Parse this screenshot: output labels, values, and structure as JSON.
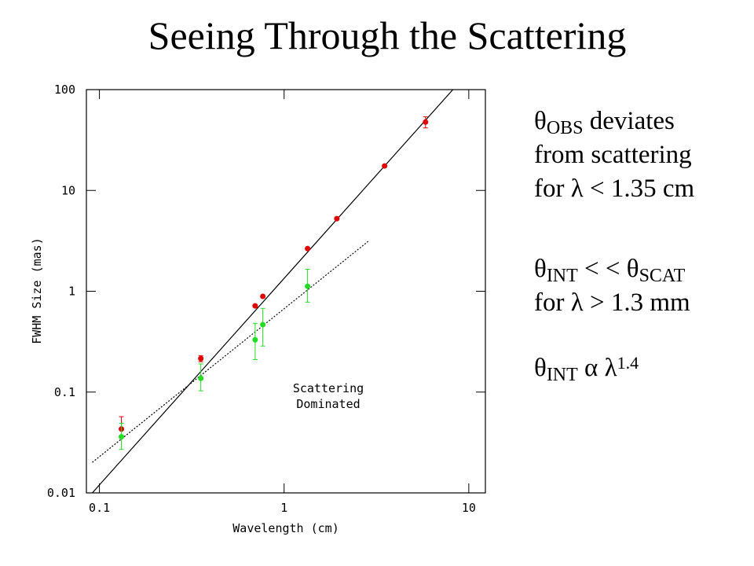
{
  "title": "Seeing Through the Scattering",
  "chart_data": {
    "type": "scatter",
    "x_label": "Wavelength (cm)",
    "y_label": "FWHM Size (mas)",
    "xscale": "log",
    "yscale": "log",
    "xlim": [
      0.085,
      12.3
    ],
    "ylim": [
      0.01,
      100
    ],
    "xticks": [
      0.1,
      1,
      10
    ],
    "yticks": [
      0.01,
      0.1,
      1,
      10,
      100
    ],
    "series": [
      {
        "color": "#e00000",
        "x": [
          0.1315,
          0.354,
          0.697,
          0.767,
          1.34,
          1.93,
          3.5,
          5.83
        ],
        "values": [
          0.043,
          0.215,
          0.716,
          0.89,
          2.65,
          5.25,
          17.5,
          47.7
        ],
        "err_minus": [
          0.006,
          0.015,
          null,
          null,
          null,
          null,
          null,
          6
        ],
        "err_plus": [
          0.014,
          0.015,
          null,
          null,
          null,
          null,
          null,
          6
        ]
      },
      {
        "color": "#22dd22",
        "x": [
          0.1315,
          0.354,
          0.697,
          0.767,
          1.34
        ],
        "values": [
          0.036,
          0.137,
          0.33,
          0.466,
          1.12
        ],
        "err_minus": [
          0.009,
          0.034,
          0.12,
          0.18,
          0.34
        ],
        "err_plus": [
          0.013,
          0.053,
          0.15,
          0.21,
          0.53
        ]
      }
    ],
    "lines": [
      {
        "color": "#000000",
        "dashed": false,
        "x": [
          0.0915,
          8.2
        ],
        "values": [
          0.01,
          100
        ]
      },
      {
        "color": "#000000",
        "dashed": true,
        "x": [
          0.0915,
          2.85
        ],
        "values": [
          0.0201,
          3.12
        ]
      }
    ],
    "annotation": [
      "Scattering",
      "Dominated"
    ]
  },
  "notes": [
    {
      "lines": [
        [
          {
            "text": "θ"
          },
          {
            "sub": "OBS"
          },
          {
            "text": " deviates"
          }
        ],
        [
          {
            "text": "from scattering"
          }
        ],
        [
          {
            "text": "for λ < 1.35 cm"
          }
        ]
      ]
    },
    {
      "lines": [
        [
          {
            "text": "θ"
          },
          {
            "sub": "INT"
          },
          {
            "text": " < <  θ"
          },
          {
            "sub": "SCAT"
          }
        ],
        [
          {
            "text": "for λ > 1.3 mm"
          }
        ]
      ]
    },
    {
      "lines": [
        [
          {
            "text": "θ"
          },
          {
            "sub": "INT"
          },
          {
            "text": " α λ"
          },
          {
            "sup": "1.4"
          }
        ]
      ]
    }
  ]
}
